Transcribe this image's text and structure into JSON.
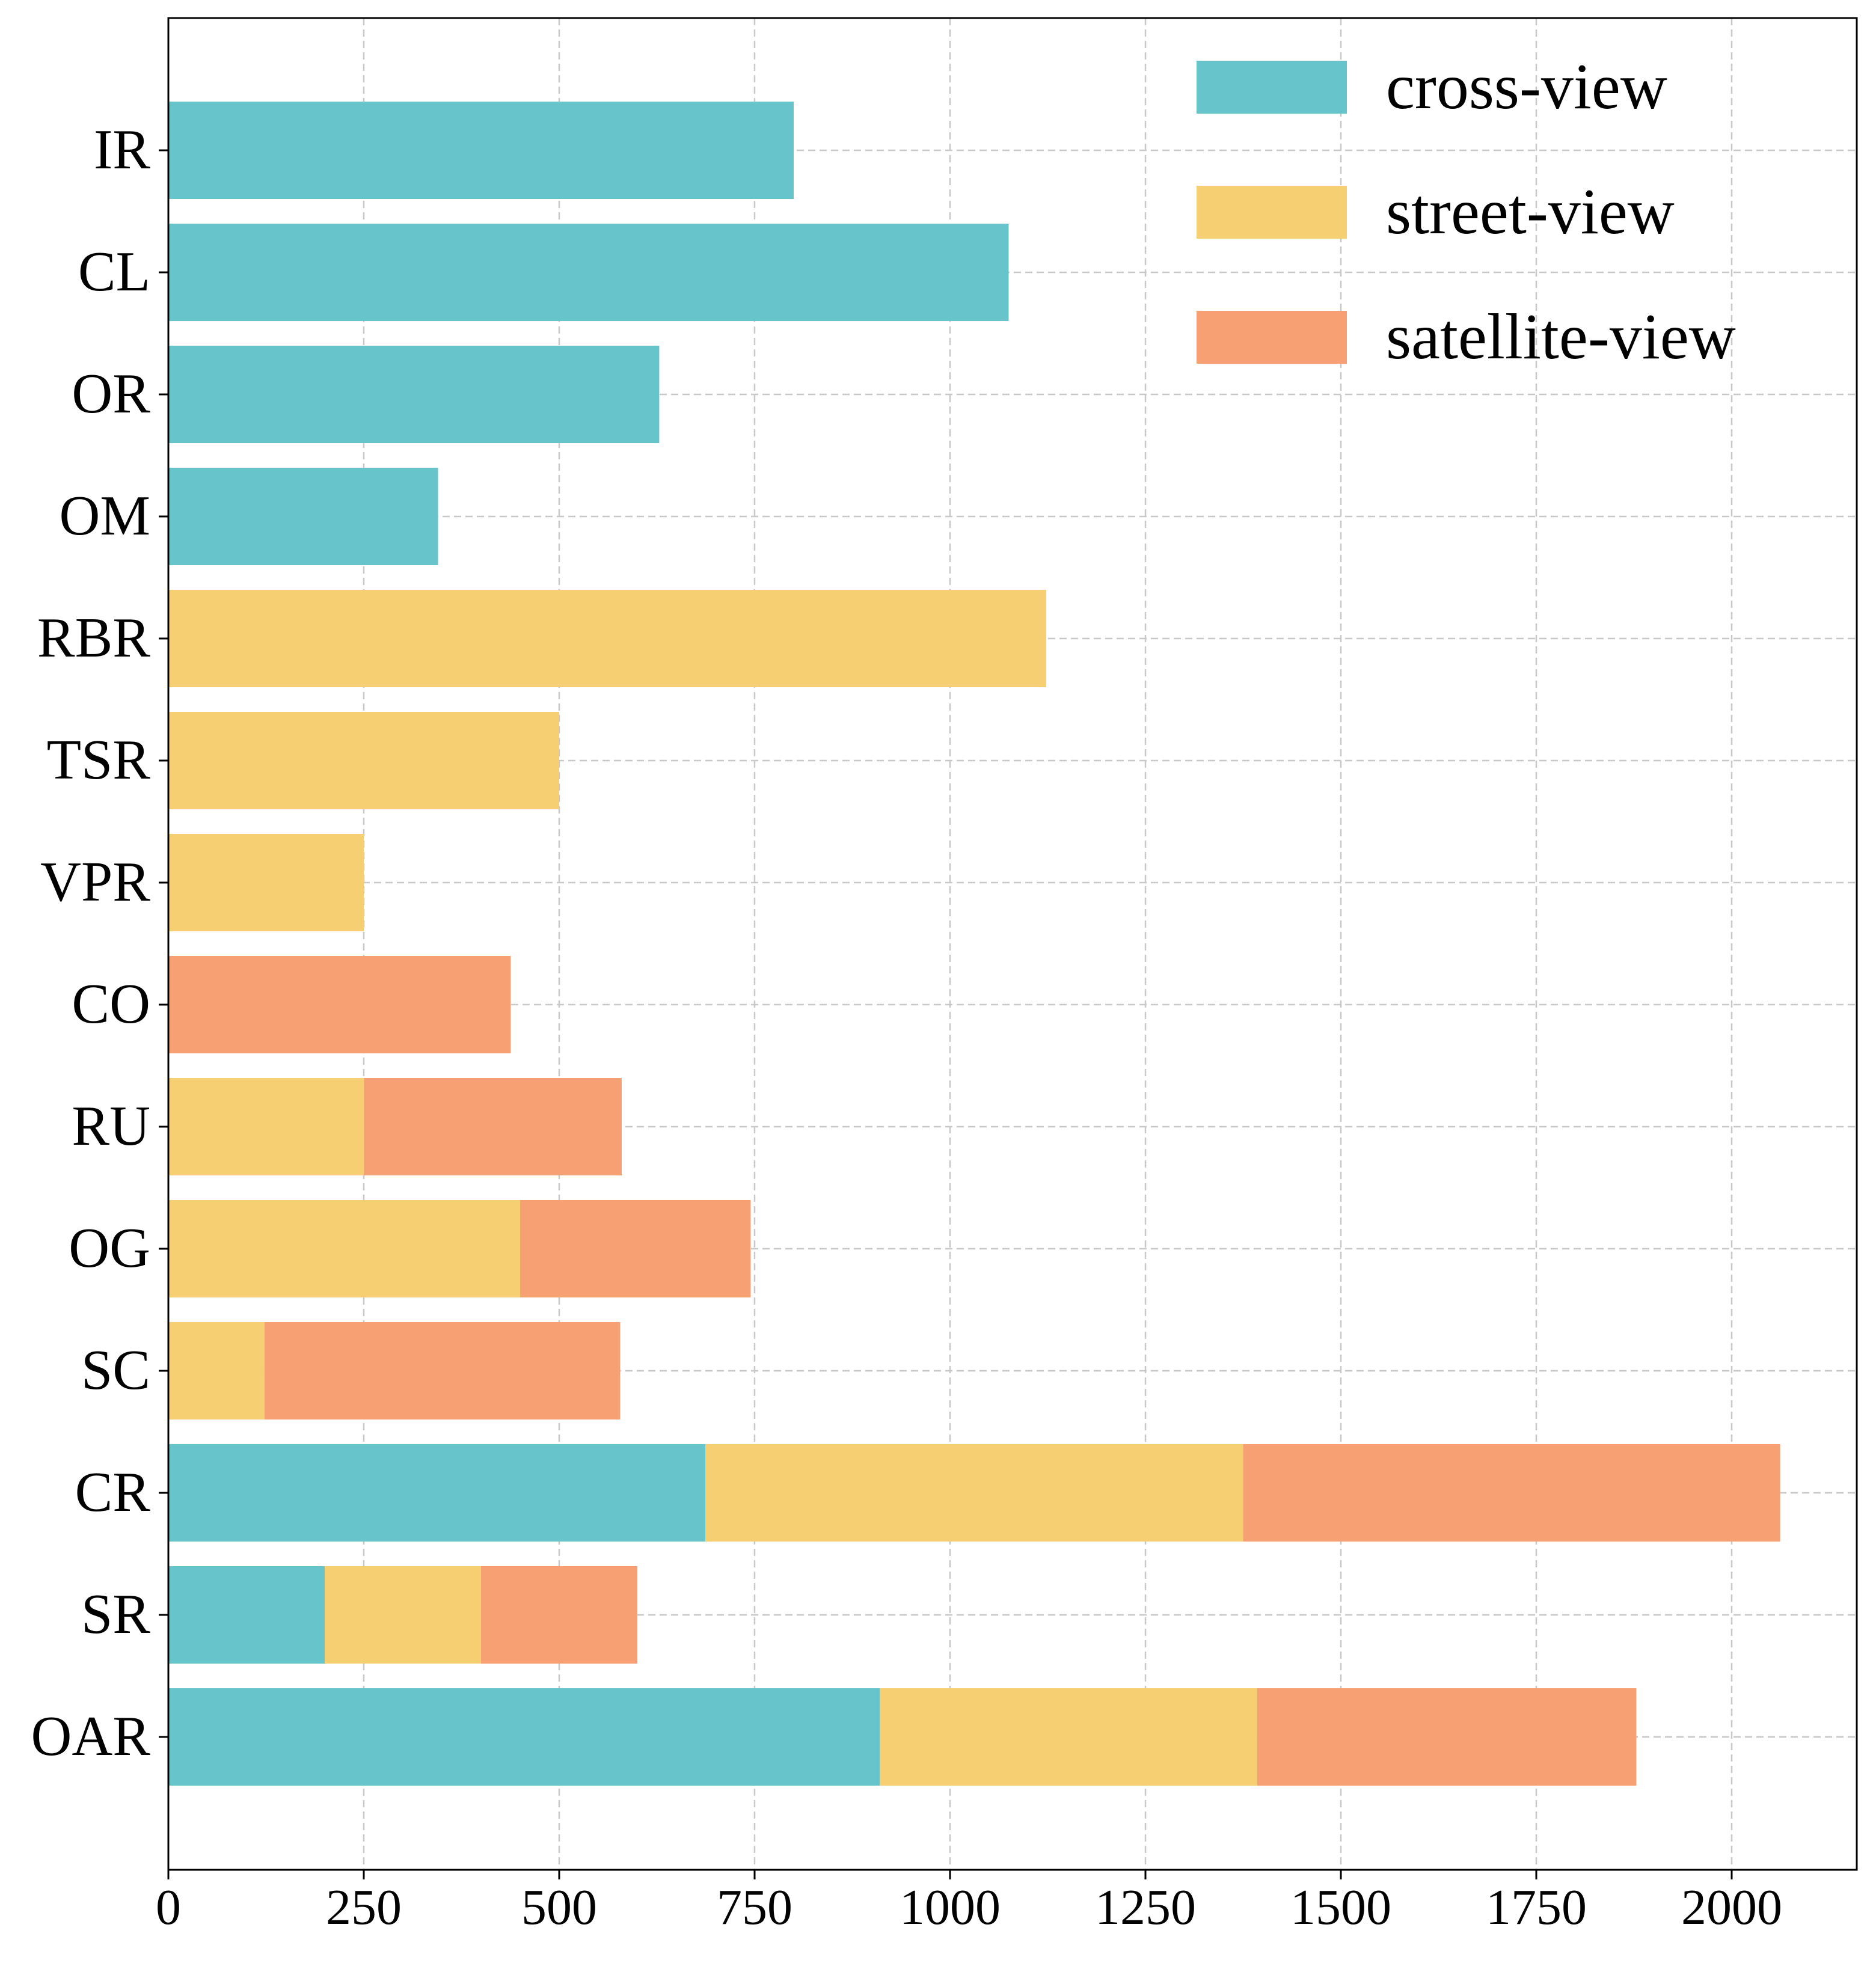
{
  "chart_data": {
    "type": "bar",
    "orientation": "horizontal",
    "stacked": true,
    "title": "",
    "xlabel": "",
    "ylabel": "",
    "xlim": [
      0,
      2160
    ],
    "xticks": [
      0,
      250,
      500,
      750,
      1000,
      1250,
      1500,
      1750,
      2000
    ],
    "grid": true,
    "legend_position": "top-right",
    "categories": [
      "IR",
      "CL",
      "OR",
      "OM",
      "RBR",
      "TSR",
      "VPR",
      "CO",
      "RU",
      "OG",
      "SC",
      "CR",
      "SR",
      "OAR"
    ],
    "series": [
      {
        "name": "cross-view",
        "color": "#67c4cb",
        "values": [
          800,
          1075,
          628,
          345,
          0,
          0,
          0,
          0,
          0,
          0,
          0,
          687,
          200,
          910
        ]
      },
      {
        "name": "street-view",
        "color": "#f5cf71",
        "values": [
          0,
          0,
          0,
          0,
          1123,
          500,
          250,
          0,
          250,
          450,
          123,
          688,
          200,
          483
        ]
      },
      {
        "name": "satellite-view",
        "color": "#f7a074",
        "values": [
          0,
          0,
          0,
          0,
          0,
          0,
          0,
          438,
          330,
          295,
          455,
          687,
          200,
          485
        ]
      }
    ]
  }
}
